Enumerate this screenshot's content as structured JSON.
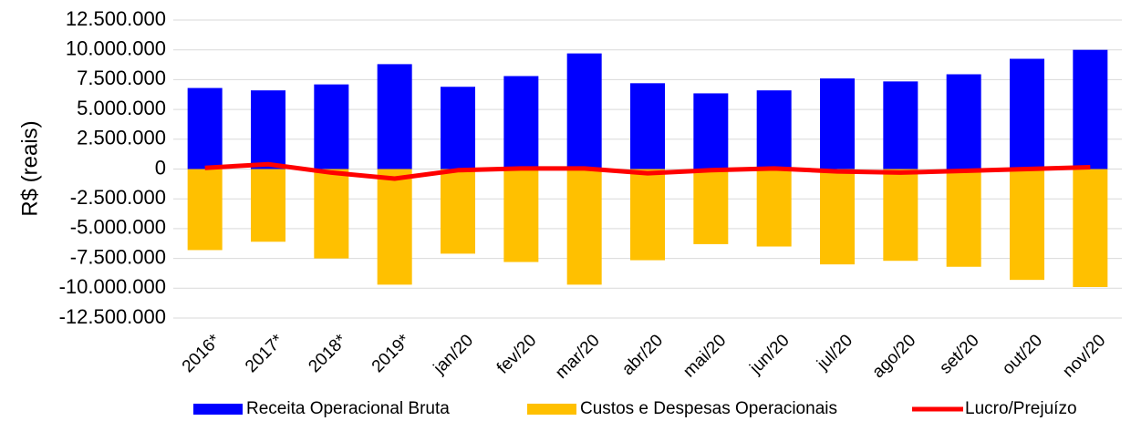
{
  "chart_data": {
    "type": "bar_line",
    "y_label": "R$ (reais)",
    "categories": [
      "2016*",
      "2017*",
      "2018*",
      "2019*",
      "jan/20",
      "fev/20",
      "mar/20",
      "abr/20",
      "mai/20",
      "jun/20",
      "jul/20",
      "ago/20",
      "set/20",
      "out/20",
      "nov/20"
    ],
    "series": [
      {
        "name": "Receita Operacional Bruta",
        "type": "bar",
        "color": "#0000ff",
        "values": [
          6800000,
          6600000,
          7100000,
          8800000,
          6900000,
          7800000,
          9700000,
          7200000,
          6350000,
          6600000,
          7600000,
          7350000,
          7950000,
          9250000,
          10000000
        ]
      },
      {
        "name": "Custos e Despesas Operacionais",
        "type": "bar",
        "color": "#ffc000",
        "values": [
          -6800000,
          -6100000,
          -7500000,
          -9700000,
          -7100000,
          -7800000,
          -9700000,
          -7650000,
          -6300000,
          -6500000,
          -8000000,
          -7700000,
          -8200000,
          -9300000,
          -9900000
        ]
      },
      {
        "name": "Lucro/Prejuízo",
        "type": "line",
        "color": "#ff0000",
        "values": [
          100000,
          400000,
          -300000,
          -800000,
          -100000,
          50000,
          50000,
          -350000,
          -100000,
          50000,
          -200000,
          -300000,
          -150000,
          0,
          150000
        ]
      }
    ],
    "ylim": [
      -12500000,
      12500000
    ],
    "yticks": [
      {
        "value": -12500000,
        "label": "-12.500.000"
      },
      {
        "value": -10000000,
        "label": "-10.000.000"
      },
      {
        "value": -7500000,
        "label": "-7.500.000"
      },
      {
        "value": -5000000,
        "label": "-5.000.000"
      },
      {
        "value": -2500000,
        "label": "-2.500.000"
      },
      0,
      {
        "value": 2500000,
        "label": "2.500.000"
      },
      {
        "value": 5000000,
        "label": "5.000.000"
      },
      {
        "value": 7500000,
        "label": "7.500.000"
      },
      {
        "value": 10000000,
        "label": "10.000.000"
      },
      {
        "value": 12500000,
        "label": "12.500.000"
      }
    ],
    "negative_tick_color": "#ff0000",
    "grid": true
  }
}
